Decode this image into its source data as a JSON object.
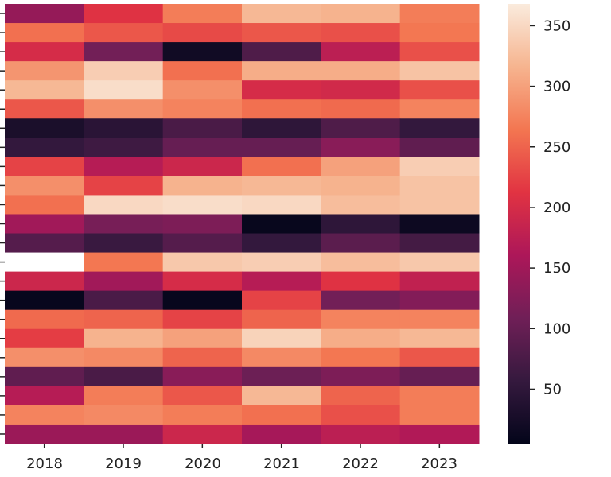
{
  "chart_data": {
    "type": "heatmap",
    "title": "",
    "xlabel": "",
    "ylabel": "",
    "x_categories": [
      "2018",
      "2019",
      "2020",
      "2021",
      "2022",
      "2023"
    ],
    "row_count": 23,
    "values": [
      [
        140,
        210,
        270,
        320,
        315,
        270
      ],
      [
        260,
        240,
        230,
        240,
        235,
        265
      ],
      [
        200,
        110,
        20,
        80,
        175,
        235
      ],
      [
        290,
        340,
        260,
        310,
        310,
        330
      ],
      [
        320,
        355,
        285,
        200,
        195,
        235
      ],
      [
        240,
        285,
        275,
        260,
        255,
        275
      ],
      [
        30,
        45,
        75,
        50,
        80,
        55
      ],
      [
        55,
        65,
        100,
        100,
        130,
        95
      ],
      [
        225,
        170,
        190,
        260,
        300,
        340
      ],
      [
        285,
        225,
        315,
        320,
        315,
        330
      ],
      [
        260,
        350,
        355,
        350,
        325,
        330
      ],
      [
        150,
        115,
        120,
        10,
        50,
        15
      ],
      [
        85,
        60,
        85,
        55,
        90,
        70
      ],
      [
        370,
        265,
        335,
        340,
        325,
        335
      ],
      [
        190,
        150,
        200,
        170,
        210,
        180
      ],
      [
        10,
        75,
        10,
        225,
        110,
        125
      ],
      [
        255,
        250,
        225,
        250,
        275,
        275
      ],
      [
        220,
        315,
        300,
        345,
        310,
        320
      ],
      [
        285,
        280,
        250,
        280,
        265,
        240
      ],
      [
        95,
        75,
        130,
        105,
        120,
        100
      ],
      [
        170,
        270,
        240,
        320,
        250,
        270
      ],
      [
        275,
        280,
        270,
        260,
        235,
        270
      ],
      [
        145,
        145,
        190,
        155,
        175,
        165
      ]
    ],
    "colorbar": {
      "min": 5,
      "max": 368,
      "ticks": [
        50,
        100,
        150,
        200,
        250,
        300,
        350
      ],
      "colormap": "rocket"
    },
    "missing_color": "#ffffff",
    "colormap_stops": [
      "#03051a",
      "#35193e",
      "#701f57",
      "#ad1759",
      "#e13342",
      "#f37651",
      "#f6b48f",
      "#faebdd"
    ]
  }
}
